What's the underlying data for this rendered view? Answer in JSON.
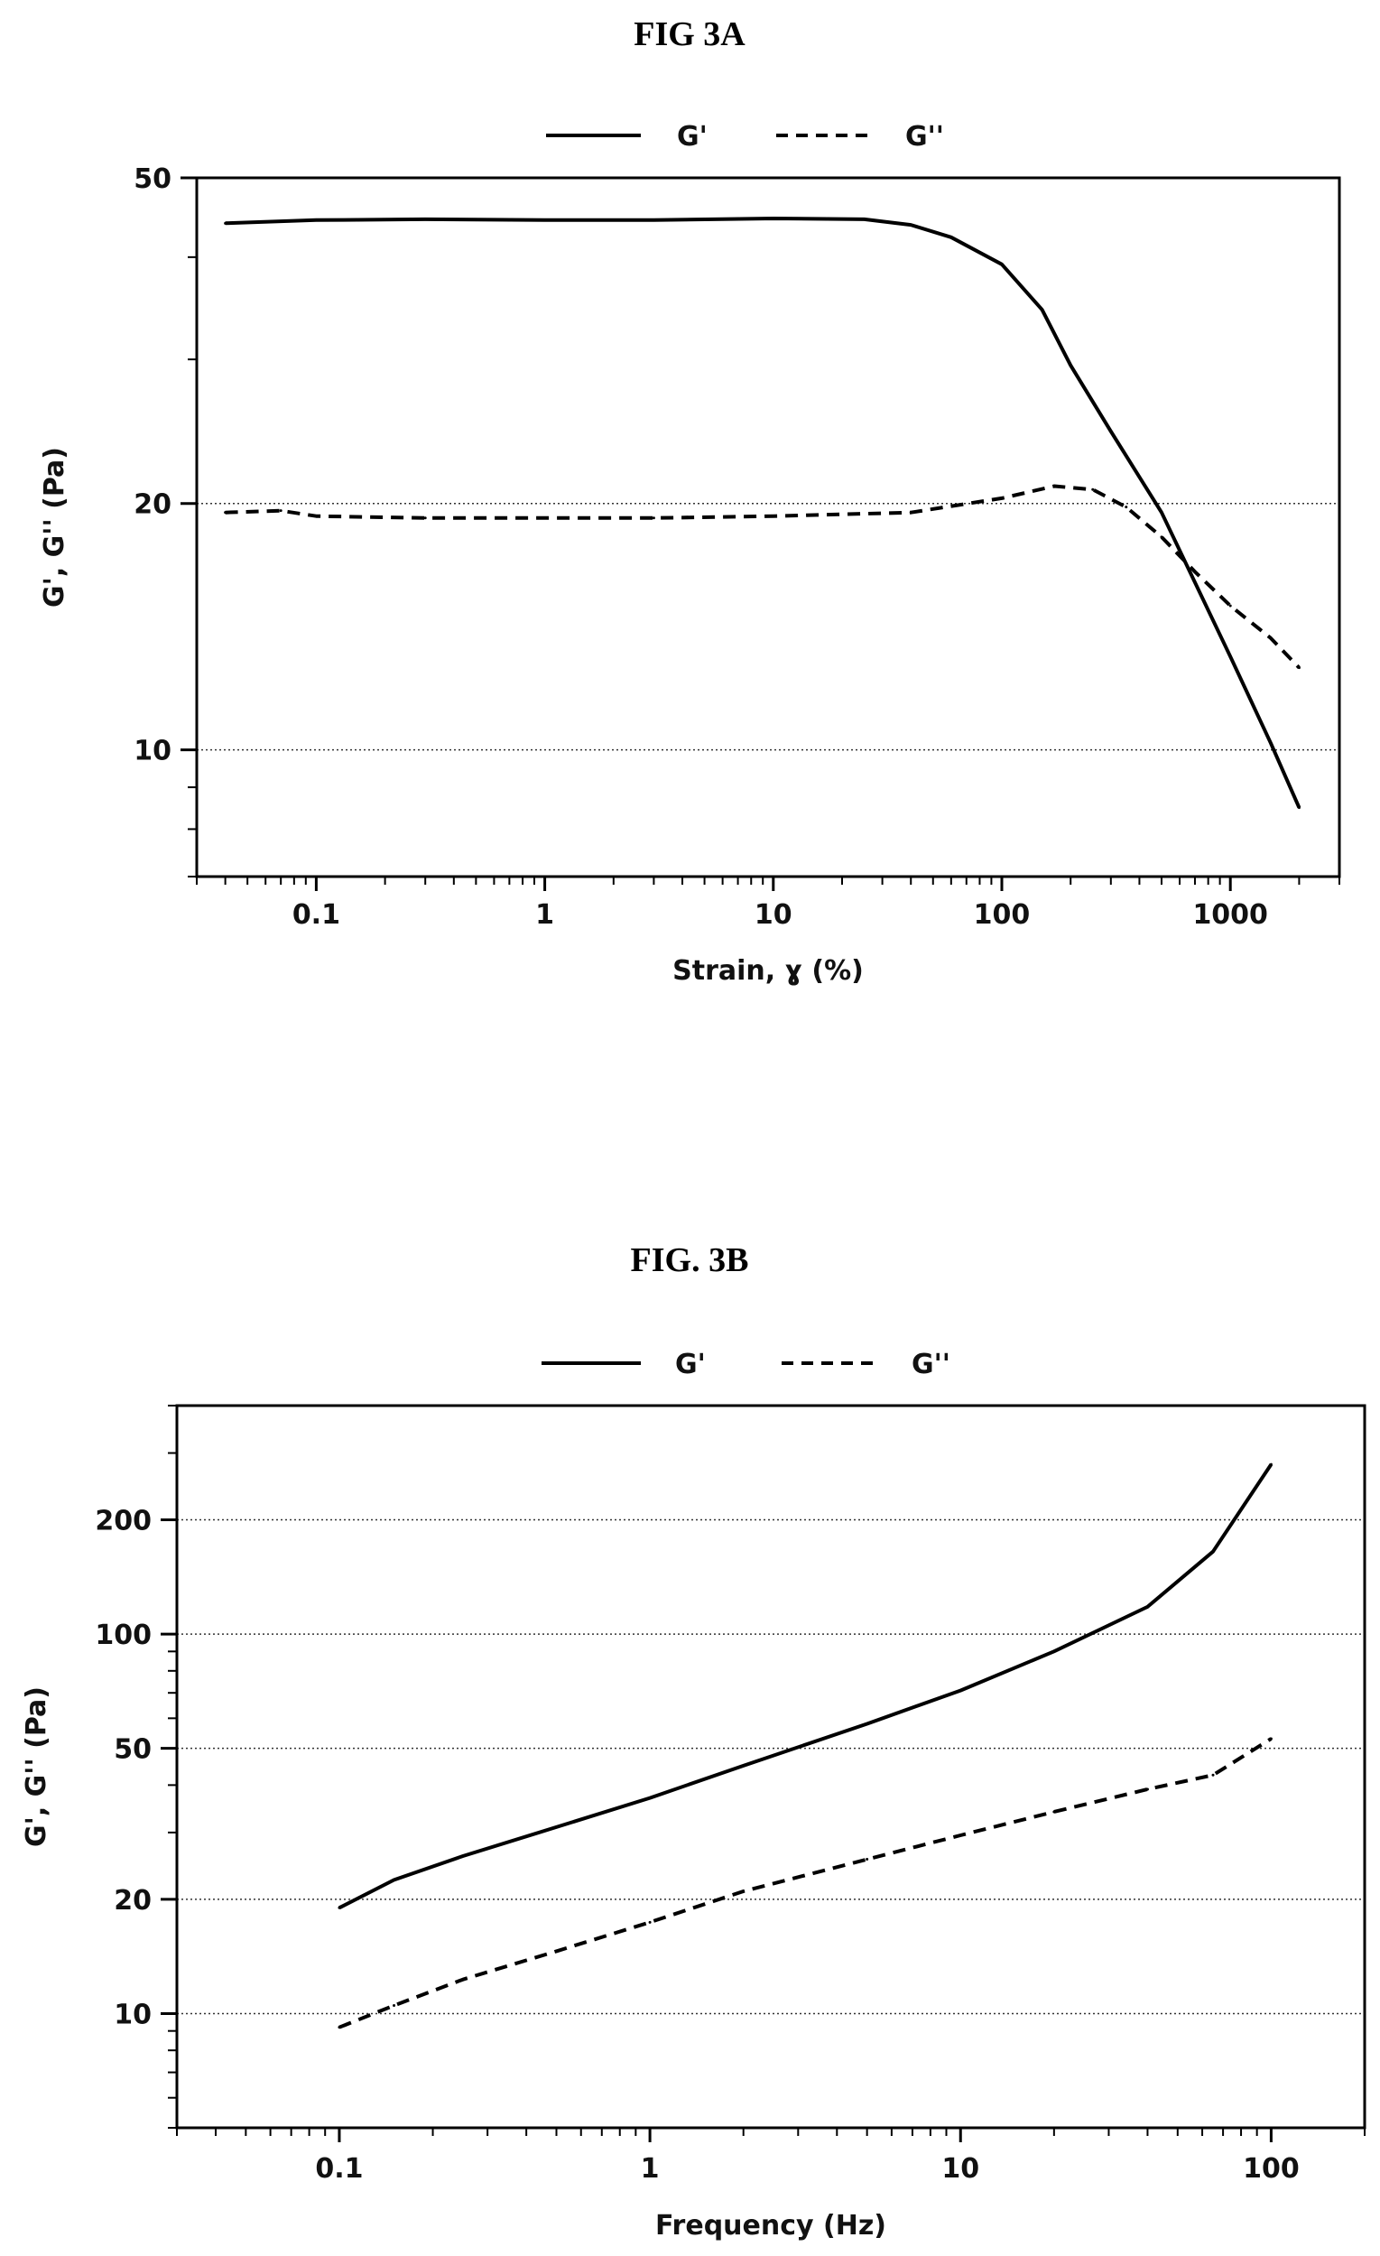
{
  "chart_data": [
    {
      "type": "line",
      "title": "FIG 3A",
      "xlabel": "Strain, ɣ (%)",
      "ylabel": "G', G'' (Pa)",
      "xscale": "log",
      "yscale": "log",
      "xlim": [
        0.03,
        3000
      ],
      "ylim": [
        7,
        50
      ],
      "xticks": [
        0.1,
        1,
        10,
        100,
        1000
      ],
      "xtick_labels": [
        "0.1",
        "1",
        "10",
        "100",
        "1000"
      ],
      "yticks": [
        10,
        20,
        50
      ],
      "ytick_labels": [
        "10",
        "20",
        "50"
      ],
      "grid": "horizontal dotted lines at 10 and 20",
      "legend": "top-center",
      "series": [
        {
          "name": "G'",
          "style": "solid",
          "x": [
            0.04,
            0.1,
            0.3,
            1,
            3,
            10,
            25,
            40,
            60,
            100,
            150,
            200,
            300,
            500,
            1000,
            1500,
            2000
          ],
          "y": [
            44,
            44.4,
            44.5,
            44.4,
            44.4,
            44.6,
            44.5,
            43.8,
            42.3,
            39.2,
            34.5,
            29.5,
            24.5,
            19.5,
            13.0,
            10.2,
            8.5
          ]
        },
        {
          "name": "G''",
          "style": "dashed",
          "x": [
            0.04,
            0.07,
            0.1,
            0.3,
            1,
            3,
            10,
            40,
            100,
            170,
            250,
            350,
            500,
            700,
            1000,
            1500,
            2000
          ],
          "y": [
            19.5,
            19.6,
            19.3,
            19.2,
            19.2,
            19.2,
            19.3,
            19.5,
            20.3,
            21.0,
            20.8,
            19.8,
            18.2,
            16.5,
            15.0,
            13.7,
            12.6
          ]
        }
      ]
    },
    {
      "type": "line",
      "title": "FIG. 3B",
      "xlabel": "Frequency (Hz)",
      "ylabel": "G', G'' (Pa)",
      "xscale": "log",
      "yscale": "log",
      "xlim": [
        0.03,
        200
      ],
      "ylim": [
        5,
        400
      ],
      "xticks": [
        0.1,
        1,
        10,
        100
      ],
      "xtick_labels": [
        "0.1",
        "1",
        "10",
        "100"
      ],
      "yticks": [
        10,
        20,
        50,
        100,
        200
      ],
      "ytick_labels": [
        "10",
        "20",
        "50",
        "100",
        "200"
      ],
      "grid": "horizontal dotted lines at 10, 20, 50, 100 and 200",
      "legend": "top-center",
      "series": [
        {
          "name": "G'",
          "style": "solid",
          "x": [
            0.1,
            0.15,
            0.25,
            0.5,
            1,
            2,
            5,
            10,
            20,
            40,
            65,
            100
          ],
          "y": [
            19,
            22.5,
            26,
            31,
            37,
            45,
            58,
            71,
            90,
            118,
            165,
            280
          ]
        },
        {
          "name": "G''",
          "style": "dashed",
          "x": [
            0.1,
            0.15,
            0.25,
            0.5,
            1,
            2,
            5,
            10,
            20,
            40,
            65,
            100
          ],
          "y": [
            9.2,
            10.5,
            12.3,
            14.6,
            17.4,
            21,
            25.5,
            29.5,
            34,
            39,
            42.5,
            53
          ]
        }
      ]
    }
  ]
}
